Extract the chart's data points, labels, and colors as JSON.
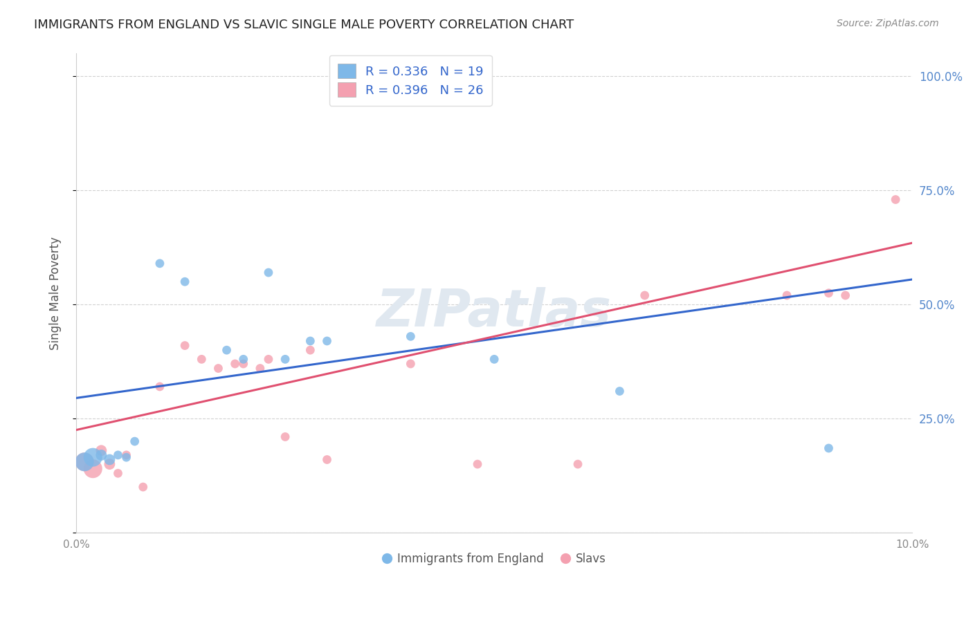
{
  "title": "IMMIGRANTS FROM ENGLAND VS SLAVIC SINGLE MALE POVERTY CORRELATION CHART",
  "source": "Source: ZipAtlas.com",
  "ylabel": "Single Male Poverty",
  "xlim": [
    0.0,
    0.1
  ],
  "ylim": [
    0.0,
    1.05
  ],
  "x_tick_positions": [
    0.0,
    0.02,
    0.04,
    0.06,
    0.08,
    0.1
  ],
  "x_tick_labels": [
    "0.0%",
    "",
    "",
    "",
    "",
    "10.0%"
  ],
  "y_tick_positions": [
    0.0,
    0.25,
    0.5,
    0.75,
    1.0
  ],
  "y_tick_labels_right": [
    "",
    "25.0%",
    "50.0%",
    "75.0%",
    "100.0%"
  ],
  "legend1_label": "R = 0.336   N = 19",
  "legend2_label": "R = 0.396   N = 26",
  "legend_bottom_label1": "Immigrants from England",
  "legend_bottom_label2": "Slavs",
  "color_england": "#7EB8E8",
  "color_slavs": "#F4A0B0",
  "color_england_line": "#3366CC",
  "color_slavs_line": "#E05070",
  "england_x": [
    0.001,
    0.002,
    0.003,
    0.004,
    0.005,
    0.006,
    0.007,
    0.01,
    0.013,
    0.018,
    0.02,
    0.023,
    0.025,
    0.028,
    0.03,
    0.04,
    0.05,
    0.065,
    0.09
  ],
  "england_y": [
    0.155,
    0.165,
    0.17,
    0.16,
    0.17,
    0.165,
    0.2,
    0.59,
    0.55,
    0.4,
    0.38,
    0.57,
    0.38,
    0.42,
    0.42,
    0.43,
    0.38,
    0.31,
    0.185
  ],
  "slavs_x": [
    0.001,
    0.002,
    0.003,
    0.004,
    0.005,
    0.006,
    0.008,
    0.01,
    0.013,
    0.015,
    0.017,
    0.019,
    0.02,
    0.022,
    0.023,
    0.025,
    0.028,
    0.03,
    0.04,
    0.048,
    0.06,
    0.068,
    0.085,
    0.09,
    0.092,
    0.098
  ],
  "slavs_y": [
    0.155,
    0.14,
    0.18,
    0.15,
    0.13,
    0.17,
    0.1,
    0.32,
    0.41,
    0.38,
    0.36,
    0.37,
    0.37,
    0.36,
    0.38,
    0.21,
    0.4,
    0.16,
    0.37,
    0.15,
    0.15,
    0.52,
    0.52,
    0.525,
    0.52,
    0.73
  ],
  "watermark": "ZIPatlas",
  "background_color": "#FFFFFF",
  "grid_color": "#CCCCCC",
  "title_color": "#222222",
  "axis_label_color": "#555555",
  "tick_label_color_right": "#5588CC",
  "legend_text_color": "#3366CC",
  "england_line_intercept": 0.295,
  "england_line_slope": 2.6,
  "slavs_line_intercept": 0.225,
  "slavs_line_slope": 4.1
}
